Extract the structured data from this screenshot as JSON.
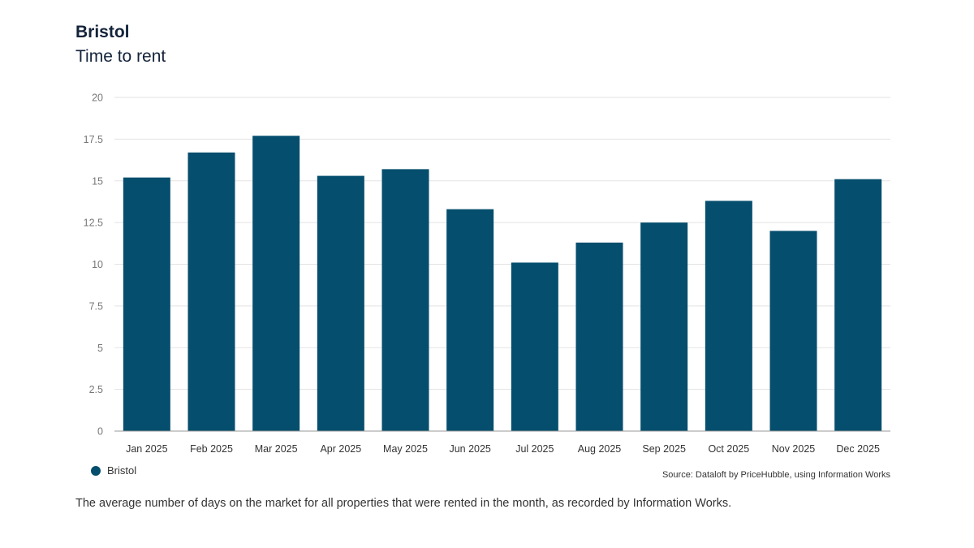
{
  "header": {
    "title": "Bristol",
    "subtitle": "Time to rent"
  },
  "legend": {
    "label": "Bristol",
    "color": "#054e6d"
  },
  "source": "Source: Dataloft by PriceHubble, using Information Works",
  "footnote": "The average number of days on the market for all properties that were rented in the month, as recorded by Information Works.",
  "chart_data": {
    "type": "bar",
    "title": "Bristol",
    "subtitle": "Time to rent",
    "categories": [
      "Jan 2025",
      "Feb 2025",
      "Mar 2025",
      "Apr 2025",
      "May 2025",
      "Jun 2025",
      "Jul 2025",
      "Aug 2025",
      "Sep 2025",
      "Oct 2025",
      "Nov 2025",
      "Dec 2025"
    ],
    "series": [
      {
        "name": "Bristol",
        "color": "#054e6d",
        "values": [
          15.2,
          16.7,
          17.7,
          15.3,
          15.7,
          13.3,
          10.1,
          11.3,
          12.5,
          13.8,
          12.0,
          15.1
        ]
      }
    ],
    "yticks": [
      "0",
      "2.5",
      "5",
      "7.5",
      "10",
      "12.5",
      "15",
      "17.5",
      "20"
    ],
    "ylim": [
      0,
      20
    ],
    "xlabel": "",
    "ylabel": "",
    "grid": true,
    "legend_position": "bottom-left"
  }
}
